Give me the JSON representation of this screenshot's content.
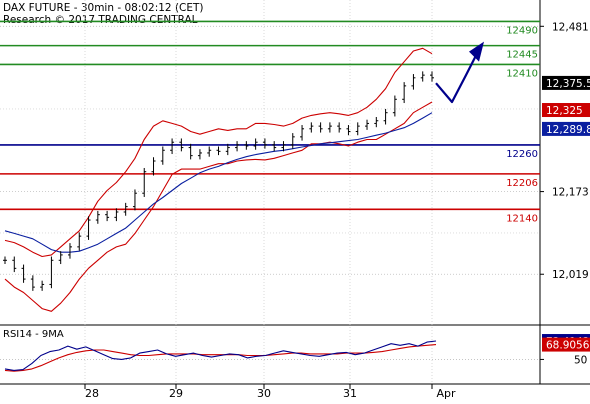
{
  "header": {
    "line1": "DAX FUTURE - 30min - 08:02:12 (CET)",
    "line2": "Research © 2017 TRADING CENTRAL"
  },
  "colors": {
    "price_bars": "#000000",
    "bollinger": "#cc0000",
    "moving_average": "#0a1fa0",
    "resistance": "#228b22",
    "pivot": "#00008b",
    "support": "#cc0000",
    "forecast_arrow": "#00008b",
    "current_price_badge": "#000000",
    "bollinger_badge": "#cc0000",
    "ma_badge": "#0a1fa0",
    "rsi_line": "#00008b",
    "rsi_ma": "#cc0000"
  },
  "chart_data": [
    {
      "type": "line",
      "title": "DAX FUTURE - 30min - 08:02:12 (CET)",
      "x_ticks": [
        "28",
        "29",
        "30",
        "31",
        "Apr"
      ],
      "y_ticks": [
        "12,481",
        "12,173",
        "12,019"
      ],
      "ylim": [
        11930,
        12530
      ],
      "levels": [
        {
          "value": 12490,
          "label": "12490",
          "kind": "resistance"
        },
        {
          "value": 12445,
          "label": "12445",
          "kind": "resistance"
        },
        {
          "value": 12410,
          "label": "12410",
          "kind": "resistance"
        },
        {
          "value": 12260,
          "label": "12260",
          "kind": "pivot"
        },
        {
          "value": 12206,
          "label": "12206",
          "kind": "support"
        },
        {
          "value": 12140,
          "label": "12140",
          "kind": "support"
        }
      ],
      "badges": [
        {
          "value": 12375.5,
          "label": "12,375.5",
          "kind": "current_price"
        },
        {
          "value": 12325,
          "label": "12,325",
          "kind": "bollinger"
        },
        {
          "value": 12289.8,
          "label": "12,289.8",
          "kind": "moving_average"
        }
      ],
      "series": [
        {
          "values": [
            12045,
            12030,
            12010,
            11995,
            12000,
            12045,
            12055,
            12070,
            12090,
            12120,
            12130,
            12125,
            12135,
            12145,
            12170,
            12210,
            12230,
            12250,
            12265,
            12255,
            12240,
            12245,
            12250,
            12248,
            12255,
            12260,
            12258,
            12265,
            12260,
            12255,
            12260,
            12275,
            12290,
            12295,
            12290,
            12295,
            12290,
            12285,
            12295,
            12300,
            12305,
            12320,
            12345,
            12370,
            12385,
            12390,
            12385
          ]
        },
        {
          "values": [
            12082,
            12078,
            12070,
            12060,
            12052,
            12055,
            12070,
            12085,
            12100,
            12125,
            12155,
            12175,
            12190,
            12210,
            12235,
            12270,
            12295,
            12305,
            12300,
            12295,
            12285,
            12280,
            12285,
            12290,
            12287,
            12290,
            12290,
            12300,
            12300,
            12298,
            12295,
            12300,
            12310,
            12315,
            12318,
            12320,
            12318,
            12315,
            12320,
            12330,
            12345,
            12365,
            12395,
            12415,
            12435,
            12440,
            12430
          ]
        },
        {
          "values": [
            12010,
            11995,
            11985,
            11970,
            11955,
            11950,
            11965,
            11985,
            12010,
            12030,
            12045,
            12060,
            12070,
            12075,
            12095,
            12120,
            12145,
            12175,
            12205,
            12215,
            12215,
            12215,
            12220,
            12225,
            12225,
            12230,
            12232,
            12233,
            12232,
            12235,
            12240,
            12245,
            12250,
            12262,
            12262,
            12265,
            12262,
            12258,
            12265,
            12270,
            12270,
            12280,
            12290,
            12300,
            12320,
            12330,
            12340
          ]
        },
        {
          "values": [
            12100,
            12095,
            12090,
            12085,
            12075,
            12065,
            12060,
            12060,
            12062,
            12068,
            12075,
            12085,
            12095,
            12105,
            12120,
            12135,
            12150,
            12162,
            12175,
            12188,
            12198,
            12208,
            12215,
            12220,
            12227,
            12233,
            12238,
            12242,
            12245,
            12248,
            12250,
            12253,
            12256,
            12259,
            12262,
            12264,
            12266,
            12268,
            12270,
            12274,
            12278,
            12282,
            12287,
            12292,
            12300,
            12310,
            12320
          ]
        },
        {
          "values": [
            12375,
            12340,
            12390,
            12445
          ]
        }
      ]
    },
    {
      "type": "line",
      "title": "RSI14 - 9MA",
      "y_ticks": [
        "50"
      ],
      "ylim": [
        20,
        90
      ],
      "badges": [
        {
          "value": 73.4142,
          "label": "73.4142",
          "kind": "rsi"
        },
        {
          "value": 68.9056,
          "label": "68.9056",
          "kind": "rsi_ma"
        }
      ],
      "series": [
        {
          "values": [
            38,
            36,
            37,
            45,
            55,
            60,
            62,
            67,
            63,
            66,
            61,
            56,
            51,
            50,
            52,
            58,
            60,
            62,
            57,
            54,
            56,
            58,
            55,
            53,
            55,
            57,
            56,
            52,
            54,
            55,
            58,
            61,
            59,
            57,
            55,
            54,
            56,
            58,
            59,
            56,
            58,
            62,
            66,
            70,
            68,
            70,
            67,
            72,
            73.4
          ]
        },
        {
          "values": [
            36,
            35,
            36,
            38,
            42,
            47,
            52,
            56,
            59,
            61,
            62,
            62,
            60,
            58,
            56,
            55,
            55,
            56,
            57,
            57,
            57,
            57,
            56,
            56,
            56,
            56,
            56,
            55,
            55,
            55,
            56,
            57,
            58,
            58,
            57,
            57,
            57,
            57,
            58,
            58,
            58,
            59,
            60,
            62,
            64,
            66,
            67,
            68,
            68.9
          ]
        }
      ]
    }
  ]
}
